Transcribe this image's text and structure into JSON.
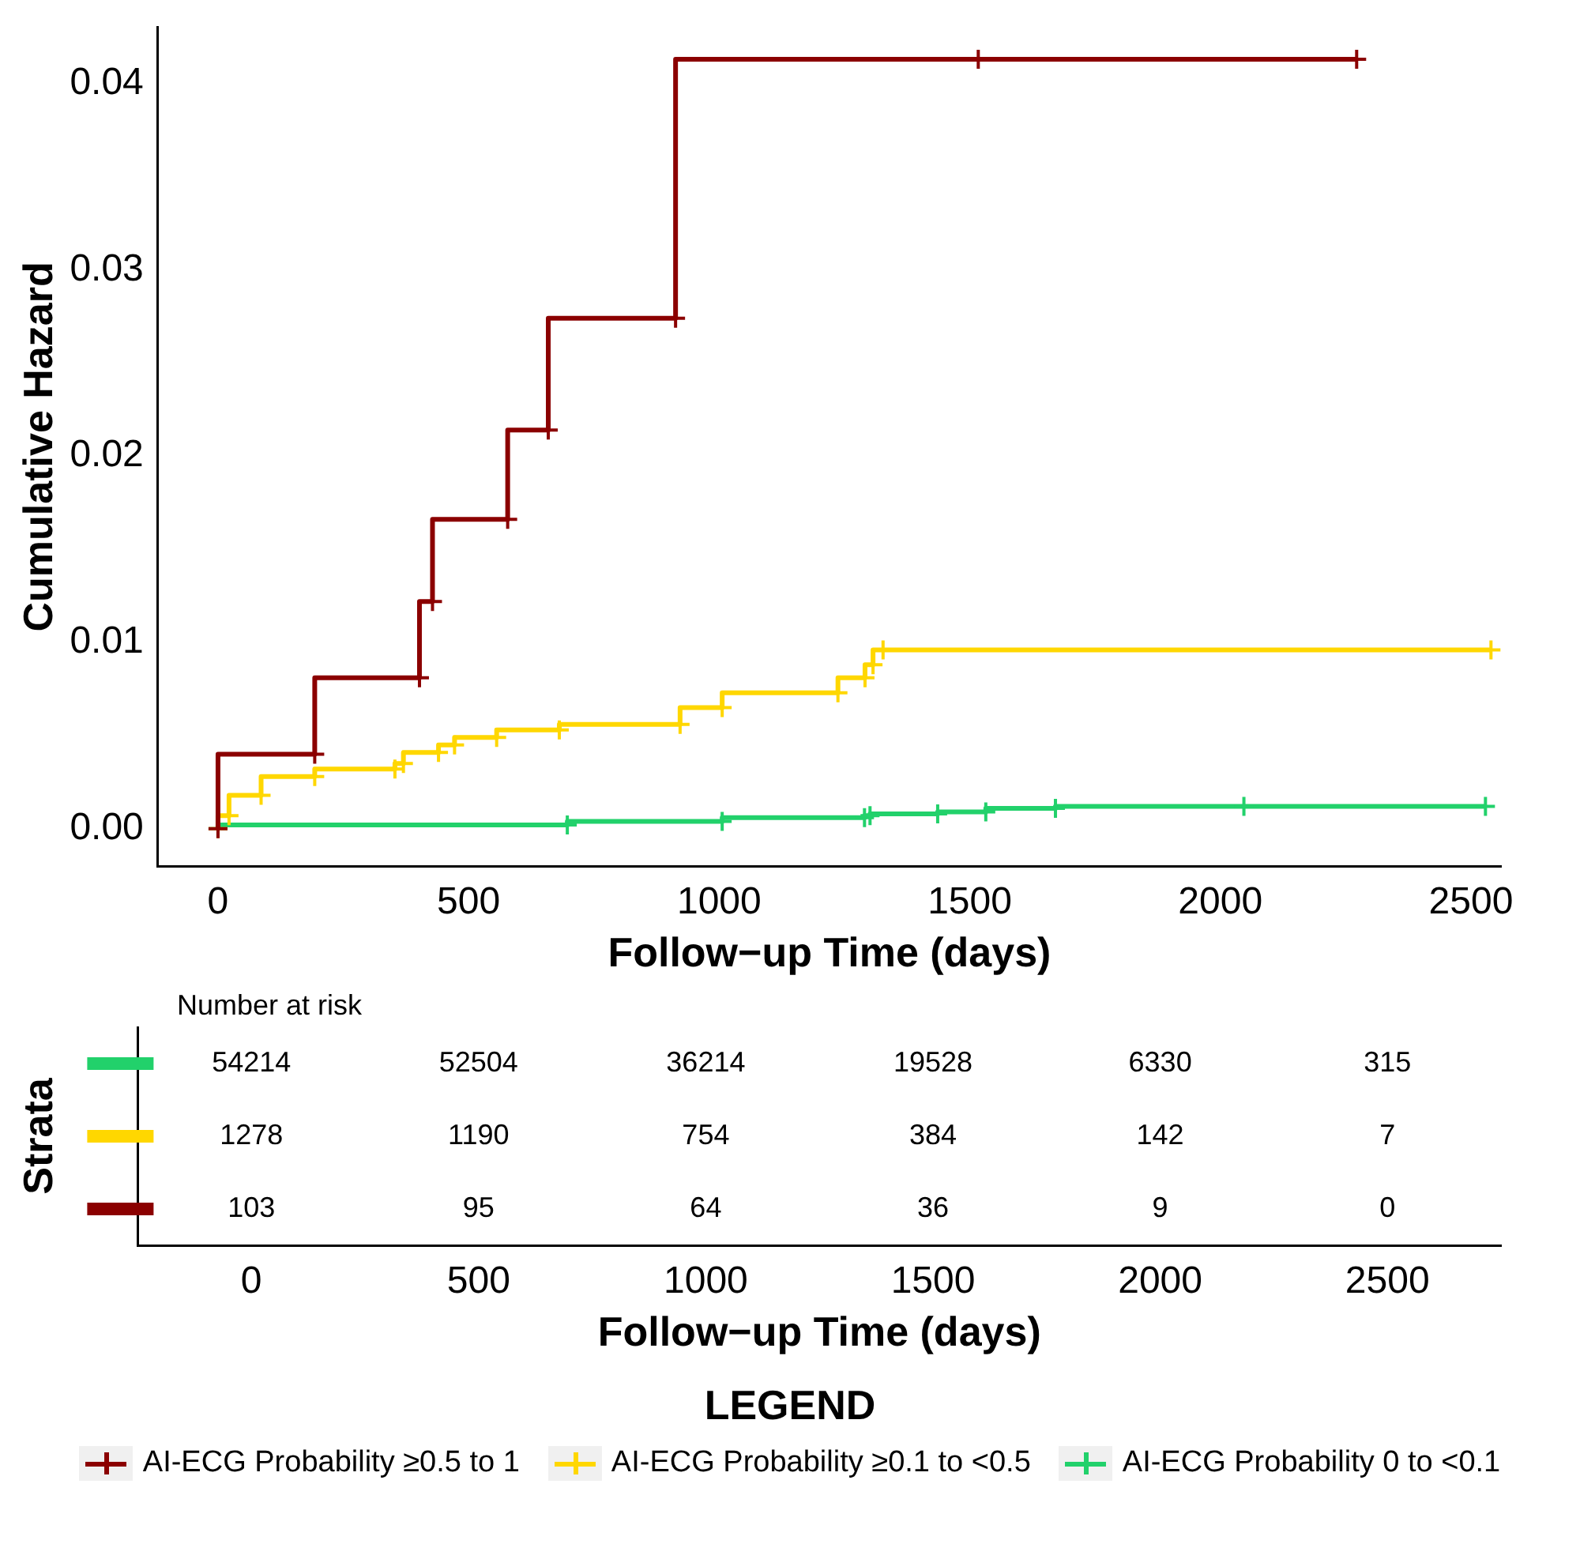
{
  "chart_data": [
    {
      "type": "step",
      "xlabel": "Follow−up Time (days)",
      "ylabel": "Cumulative Hazard",
      "legend": "bottom",
      "legend_title": "LEGEND",
      "marker": "cross",
      "xlim": [
        -120,
        2560
      ],
      "xticks": [
        0,
        500,
        1000,
        1500,
        2000,
        2500
      ],
      "ylim": [
        -0.002,
        0.043
      ],
      "yticks": [
        {
          "value": 0,
          "label": "0.00"
        },
        {
          "value": 0.01,
          "label": "0.01"
        },
        {
          "value": 0.02,
          "label": "0.02"
        },
        {
          "value": 0.03,
          "label": "0.03"
        },
        {
          "value": 0.04,
          "label": "0.04"
        }
      ],
      "series": [
        {
          "name": "AI-ECG Probability ≥0.5 to 1",
          "color": "#8b0000",
          "x": [
            0,
            193,
            402,
            428,
            578,
            659,
            913,
            1517,
            2272
          ],
          "values": [
            0,
            0.004,
            0.0081,
            0.0122,
            0.0166,
            0.0214,
            0.0274,
            0.0413,
            0.0413
          ]
        },
        {
          "name": "AI-ECG Probability ≥0.1 to <0.5",
          "color": "#ffd700",
          "x": [
            0,
            22,
            86,
            193,
            353,
            370,
            440,
            472,
            556,
            681,
            922,
            1006,
            1237,
            1291,
            1307,
            1327,
            2540
          ],
          "values": [
            0,
            0.0007,
            0.0018,
            0.0028,
            0.0032,
            0.0035,
            0.0041,
            0.0045,
            0.0049,
            0.0053,
            0.0056,
            0.0065,
            0.0073,
            0.0081,
            0.0088,
            0.0096,
            0.0096
          ]
        },
        {
          "name": "AI-ECG Probability 0 to <0.1",
          "color": "#22d16b",
          "x": [
            0,
            697,
            1006,
            1290,
            1301,
            1436,
            1532,
            1671,
            2047,
            2529
          ],
          "values": [
            0,
            0.0002,
            0.0004,
            0.0006,
            0.0007,
            0.0008,
            0.0009,
            0.0011,
            0.0012,
            0.0012
          ]
        }
      ]
    },
    {
      "type": "heatmap",
      "title": "Number at risk",
      "ylabel": "Strata",
      "xlabel": "Follow−up Time (days)",
      "data_labels": true,
      "categories": [
        "0",
        "500",
        "1000",
        "1500",
        "2000",
        "2500"
      ],
      "y_categories": [
        null,
        null,
        null
      ],
      "colors": [
        "#22d16b",
        "#ffd700",
        "#8b0000"
      ],
      "cells": [
        [
          54214,
          52504,
          36214,
          19528,
          6330,
          315
        ],
        [
          1278,
          1190,
          754,
          384,
          142,
          7
        ],
        [
          103,
          95,
          64,
          36,
          9,
          0
        ]
      ]
    }
  ]
}
